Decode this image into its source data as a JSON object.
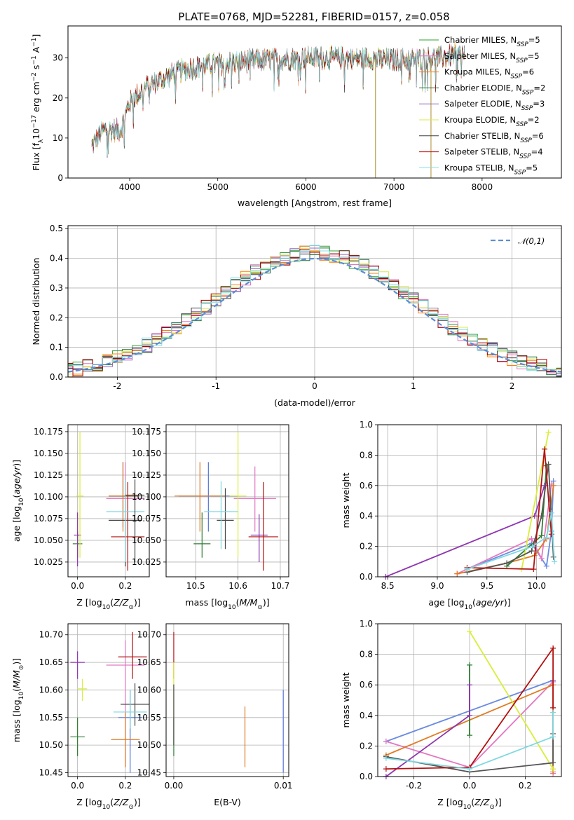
{
  "title": "PLATE=0768, MJD=52281, FIBERID=0157, z=0.058",
  "series_colors": [
    "#2ca02c",
    "#e377c2",
    "#ff7f0e",
    "#1f6b3a",
    "#9467bd",
    "#dbe84a",
    "#3d3d3d",
    "#b30000",
    "#7fe0e8"
  ],
  "chart_data": [
    {
      "id": "spectrum",
      "type": "line",
      "xlabel": "wavelength [Angstrom, rest frame]",
      "ylabel": "Flux [f_λ10^-17 erg cm^-2 s^-1 A^-1]",
      "xlim": [
        3300,
        8900
      ],
      "ylim": [
        0,
        38
      ],
      "xticks": [
        4000,
        5000,
        6000,
        7000,
        8000
      ],
      "yticks": [
        0,
        10,
        20,
        30
      ],
      "grid": false,
      "legend": "top-right",
      "series": [
        {
          "name": "Chabrier MILES, N_SSP=5",
          "color": "#2ca02c"
        },
        {
          "name": "Salpeter MILES, N_SSP=5",
          "color": "#e377c2"
        },
        {
          "name": "Kroupa MILES, N_SSP=6",
          "color": "#ff7f0e"
        },
        {
          "name": "Chabrier ELODIE, N_SSP=2",
          "color": "#1f6b3a"
        },
        {
          "name": "Salpeter ELODIE, N_SSP=3",
          "color": "#9467bd"
        },
        {
          "name": "Kroupa ELODIE, N_SSP=2",
          "color": "#dbe84a"
        },
        {
          "name": "Chabrier STELIB, N_SSP=6",
          "color": "#3d3d3d"
        },
        {
          "name": "Salpeter STELIB, N_SSP=4",
          "color": "#b30000"
        },
        {
          "name": "Kroupa STELIB, N_SSP=5",
          "color": "#7fe0e8"
        }
      ],
      "continuum": {
        "x": [
          3570,
          3700,
          3900,
          4000,
          4200,
          4400,
          4600,
          4800,
          5000,
          5200,
          5500,
          6000,
          6500,
          7000,
          7500,
          7800
        ],
        "y": [
          8,
          12,
          12,
          19,
          23,
          25,
          27,
          28,
          28.5,
          29,
          29.5,
          30,
          30,
          29.5,
          30,
          31
        ]
      }
    },
    {
      "id": "residuals",
      "type": "line",
      "xlabel": "(data-model)/error",
      "ylabel": "Normed distribution",
      "xlim": [
        -2.5,
        2.5
      ],
      "ylim": [
        0,
        0.51
      ],
      "xticks": [
        -2,
        -1,
        0,
        1,
        2
      ],
      "yticks": [
        0.0,
        0.1,
        0.2,
        0.3,
        0.4,
        0.5
      ],
      "grid": true,
      "legend": "top-right",
      "reference_label": "𝒩(0,1)",
      "bin_width": 0.1
    },
    {
      "id": "age-vs-Z",
      "type": "scatter",
      "xlabel": "Z [log10(Z/Z⊙)]",
      "ylabel": "age  [log10(age/yr)]",
      "xlim": [
        -0.04,
        0.3
      ],
      "ylim": [
        10.008,
        10.183
      ],
      "xticks": [
        0.0,
        0.2
      ],
      "yticks": [
        10.025,
        10.05,
        10.075,
        10.1,
        10.125,
        10.15,
        10.175
      ],
      "grid": true,
      "points": [
        {
          "series": "Chabrier MILES",
          "x": 0.19,
          "y": 10.101,
          "xerr": 0.06,
          "yerr": [
            10.065,
            10.14
          ]
        },
        {
          "series": "Salpeter MILES",
          "x": 0.2,
          "y": 10.098,
          "xerr": 0.08,
          "yerr": [
            10.058,
            10.14
          ]
        },
        {
          "series": "Kroupa MILES",
          "x": 0.19,
          "y": 10.101,
          "xerr": 0.06,
          "yerr": [
            10.06,
            10.14
          ]
        },
        {
          "series": "Chabrier ELODIE",
          "x": 0.0,
          "y": 10.046,
          "xerr": 0.02,
          "yerr": [
            10.03,
            10.06
          ]
        },
        {
          "series": "Salpeter ELODIE",
          "x": 0.0,
          "y": 10.056,
          "xerr": 0.015,
          "yerr": [
            10.02,
            10.082
          ]
        },
        {
          "series": "Kroupa ELODIE",
          "x": 0.01,
          "y": 10.101,
          "xerr": 0.015,
          "yerr": [
            10.03,
            10.175
          ]
        },
        {
          "series": "Chabrier STELIB",
          "x": 0.2,
          "y": 10.073,
          "xerr": 0.07,
          "yerr": [
            10.02,
            10.12
          ]
        },
        {
          "series": "Salpeter STELIB",
          "x": 0.21,
          "y": 10.054,
          "xerr": 0.07,
          "yerr": [
            10.015,
            10.117
          ]
        },
        {
          "series": "Kroupa STELIB",
          "x": 0.2,
          "y": 10.083,
          "xerr": 0.08,
          "yerr": [
            10.025,
            10.12
          ]
        },
        {
          "series": "Chabrier STELIB",
          "x": 0.24,
          "y": 10.102,
          "xerr": 0.04,
          "yerr": [
            10.025,
            10.12
          ]
        }
      ]
    },
    {
      "id": "age-vs-mass",
      "type": "scatter",
      "xlabel": "mass [log10(M/M⊙)]",
      "ylabel": "",
      "xlim": [
        10.43,
        10.72
      ],
      "ylim": [
        10.008,
        10.183
      ],
      "xticks": [
        10.5,
        10.6,
        10.7
      ],
      "yticks": [
        10.025,
        10.05,
        10.075,
        10.1,
        10.125,
        10.15,
        10.175
      ],
      "grid": true,
      "points": [
        {
          "series": "Chabrier MILES",
          "x": 10.53,
          "y": 10.101,
          "xerr": 0.07,
          "yerr": [
            10.06,
            10.14
          ]
        },
        {
          "series": "Salpeter MILES",
          "x": 10.64,
          "y": 10.098,
          "xerr": 0.05,
          "yerr": [
            10.06,
            10.135
          ]
        },
        {
          "series": "Kroupa MILES",
          "x": 10.51,
          "y": 10.101,
          "xerr": 0.06,
          "yerr": [
            10.06,
            10.14
          ]
        },
        {
          "series": "Chabrier ELODIE",
          "x": 10.515,
          "y": 10.046,
          "xerr": 0.02,
          "yerr": [
            10.03,
            10.082
          ]
        },
        {
          "series": "Salpeter ELODIE",
          "x": 10.65,
          "y": 10.056,
          "xerr": 0.02,
          "yerr": [
            10.025,
            10.08
          ]
        },
        {
          "series": "Kroupa ELODIE",
          "x": 10.6,
          "y": 10.101,
          "xerr": 0.02,
          "yerr": [
            10.03,
            10.175
          ]
        },
        {
          "series": "Chabrier STELIB",
          "x": 10.57,
          "y": 10.073,
          "xerr": 0.02,
          "yerr": [
            10.04,
            10.11
          ]
        },
        {
          "series": "Salpeter STELIB",
          "x": 10.66,
          "y": 10.054,
          "xerr": 0.035,
          "yerr": [
            10.015,
            10.117
          ]
        },
        {
          "series": "Kroupa STELIB",
          "x": 10.56,
          "y": 10.083,
          "xerr": 0.04,
          "yerr": [
            10.04,
            10.118
          ]
        }
      ]
    },
    {
      "id": "mass-weight-vs-age",
      "type": "line",
      "xlabel": "age  [log10(age/yr)]",
      "ylabel": "mass weight",
      "xlim": [
        8.4,
        10.25
      ],
      "ylim": [
        0,
        1
      ],
      "xticks": [
        8.5,
        9.0,
        9.5,
        10.0
      ],
      "yticks": [
        0.0,
        0.2,
        0.4,
        0.6,
        0.8,
        1.0
      ],
      "grid": true,
      "series": [
        {
          "name": "Chabrier MILES",
          "color": "#6a8be0",
          "x": [
            9.3,
            9.95,
            10.1,
            10.15,
            10.17
          ],
          "y": [
            0.05,
            0.22,
            0.07,
            0.3,
            0.63
          ]
        },
        {
          "name": "Salpeter MILES",
          "color": "#e377c2",
          "x": [
            9.2,
            9.95,
            10.05,
            10.15
          ],
          "y": [
            0.02,
            0.25,
            0.12,
            0.61
          ]
        },
        {
          "name": "Kroupa MILES",
          "color": "#e07b22",
          "x": [
            9.2,
            9.7,
            9.98,
            10.1,
            10.17
          ],
          "y": [
            0.02,
            0.09,
            0.14,
            0.25,
            0.6
          ]
        },
        {
          "name": "Chabrier ELODIE",
          "color": "#2e7d32",
          "x": [
            9.7,
            10.05,
            10.1
          ],
          "y": [
            0.07,
            0.27,
            0.73
          ]
        },
        {
          "name": "Salpeter ELODIE",
          "color": "#8e35b0",
          "x": [
            8.48,
            9.98,
            10.08
          ],
          "y": [
            0.0,
            0.4,
            0.6
          ]
        },
        {
          "name": "Kroupa ELODIE",
          "color": "#d8ee3a",
          "x": [
            9.85,
            10.12
          ],
          "y": [
            0.05,
            0.95
          ]
        },
        {
          "name": "Chabrier STELIB",
          "color": "#555555",
          "x": [
            9.3,
            9.7,
            9.95,
            10.05,
            10.12,
            10.17
          ],
          "y": [
            0.03,
            0.09,
            0.17,
            0.4,
            0.74,
            0.13
          ]
        },
        {
          "name": "Salpeter STELIB",
          "color": "#b31212",
          "x": [
            9.3,
            9.97,
            10.08,
            10.15
          ],
          "y": [
            0.06,
            0.05,
            0.84,
            0.28
          ]
        },
        {
          "name": "Kroupa STELIB",
          "color": "#7fd8e0",
          "x": [
            9.3,
            9.96,
            10.1,
            10.15,
            10.18
          ],
          "y": [
            0.05,
            0.2,
            0.26,
            0.42,
            0.1
          ]
        }
      ]
    },
    {
      "id": "mass-vs-Z",
      "type": "scatter",
      "xlabel": "Z [log10(Z/Z⊙)]",
      "ylabel": "mass [log10(M/M⊙)]",
      "xlim": [
        -0.04,
        0.3
      ],
      "ylim": [
        10.443,
        10.72
      ],
      "xticks": [
        0.0,
        0.2
      ],
      "yticks": [
        10.45,
        10.5,
        10.55,
        10.6,
        10.65,
        10.7
      ],
      "grid": true,
      "points": [
        {
          "series": "Chabrier MILES",
          "x": 0.22,
          "y": 10.55,
          "xerr": 0.05,
          "yerr": [
            10.45,
            10.6
          ]
        },
        {
          "series": "Salpeter MILES",
          "x": 0.2,
          "y": 10.645,
          "xerr": 0.08,
          "yerr": [
            10.46,
            10.69
          ]
        },
        {
          "series": "Kroupa MILES",
          "x": 0.2,
          "y": 10.51,
          "xerr": 0.06,
          "yerr": [
            10.46,
            10.56
          ]
        },
        {
          "series": "Chabrier ELODIE",
          "x": 0.0,
          "y": 10.515,
          "xerr": 0.03,
          "yerr": [
            10.48,
            10.55
          ]
        },
        {
          "series": "Salpeter ELODIE",
          "x": 0.0,
          "y": 10.65,
          "xerr": 0.03,
          "yerr": [
            10.62,
            10.67
          ]
        },
        {
          "series": "Kroupa ELODIE",
          "x": 0.02,
          "y": 10.602,
          "xerr": 0.02,
          "yerr": [
            10.58,
            10.62
          ]
        },
        {
          "series": "Chabrier STELIB",
          "x": 0.24,
          "y": 10.574,
          "xerr": 0.06,
          "yerr": [
            10.535,
            10.612
          ]
        },
        {
          "series": "Salpeter STELIB",
          "x": 0.23,
          "y": 10.66,
          "xerr": 0.06,
          "yerr": [
            10.62,
            10.705
          ]
        },
        {
          "series": "Kroupa STELIB",
          "x": 0.22,
          "y": 10.56,
          "xerr": 0.07,
          "yerr": [
            10.53,
            10.6
          ]
        }
      ]
    },
    {
      "id": "mass-vs-EBV",
      "type": "scatter",
      "xlabel": "E(B-V)",
      "ylabel": "",
      "xlim": [
        -0.0007,
        0.0105
      ],
      "ylim": [
        10.443,
        10.72
      ],
      "xticks": [
        0.0,
        0.01
      ],
      "yticks": [
        10.45,
        10.5,
        10.55,
        10.6,
        10.65,
        10.7
      ],
      "grid": true,
      "points": [
        {
          "series": "Chabrier MILES",
          "x": 0.01,
          "y": 10.53,
          "yerr": [
            10.45,
            10.6
          ]
        },
        {
          "series": "Kroupa MILES",
          "x": 0.0065,
          "y": 10.51,
          "yerr": [
            10.46,
            10.57
          ]
        },
        {
          "series": "Chabrier ELODIE",
          "x": 0.0,
          "y": 10.52,
          "yerr": [
            10.48,
            10.55
          ]
        },
        {
          "series": "Salpeter STELIB",
          "x": 0.0,
          "y": 10.66,
          "yerr": [
            10.62,
            10.705
          ]
        },
        {
          "series": "Kroupa ELODIE",
          "x": 0.0,
          "y": 10.6,
          "yerr": [
            10.55,
            10.65
          ]
        },
        {
          "series": "Chabrier STELIB",
          "x": 0.0,
          "y": 10.575,
          "yerr": [
            10.5,
            10.61
          ]
        }
      ]
    },
    {
      "id": "mass-weight-vs-Z",
      "type": "line",
      "xlabel": "Z [log10(Z/Z⊙)]",
      "ylabel": "mass weight",
      "xlim": [
        -0.33,
        0.33
      ],
      "ylim": [
        0,
        1
      ],
      "xticks": [
        -0.2,
        0.0,
        0.2
      ],
      "yticks": [
        0.0,
        0.2,
        0.4,
        0.6,
        0.8,
        1.0
      ],
      "grid": true,
      "series": [
        {
          "name": "Chabrier MILES",
          "color": "#6a8be0",
          "x": [
            -0.3,
            0.3,
            0.3
          ],
          "y": [
            0.23,
            0.63,
            0.05
          ]
        },
        {
          "name": "Salpeter MILES",
          "color": "#e377c2",
          "x": [
            -0.3,
            0.0,
            0.3,
            0.3
          ],
          "y": [
            0.23,
            0.06,
            0.62,
            0.02
          ]
        },
        {
          "name": "Kroupa MILES",
          "color": "#e07b22",
          "x": [
            -0.3,
            0.3,
            0.3
          ],
          "y": [
            0.14,
            0.6,
            0.03
          ]
        },
        {
          "name": "Chabrier ELODIE",
          "color": "#2e7d32",
          "x": [
            0.0,
            0.0
          ],
          "y": [
            0.27,
            0.73
          ]
        },
        {
          "name": "Salpeter ELODIE",
          "color": "#8e35b0",
          "x": [
            -0.3,
            0.0,
            0.0
          ],
          "y": [
            0.0,
            0.4,
            0.6
          ]
        },
        {
          "name": "Kroupa ELODIE",
          "color": "#d8ee3a",
          "x": [
            0.0,
            0.3
          ],
          "y": [
            0.95,
            0.05
          ]
        },
        {
          "name": "Chabrier STELIB",
          "color": "#555555",
          "x": [
            -0.3,
            0.0,
            0.3,
            0.3
          ],
          "y": [
            0.13,
            0.03,
            0.09,
            0.28
          ]
        },
        {
          "name": "Salpeter STELIB",
          "color": "#b31212",
          "x": [
            -0.3,
            0.0,
            0.3,
            0.3
          ],
          "y": [
            0.05,
            0.06,
            0.84,
            0.45
          ]
        },
        {
          "name": "Kroupa STELIB",
          "color": "#7fd8e0",
          "x": [
            -0.3,
            0.0,
            0.3,
            0.3
          ],
          "y": [
            0.12,
            0.05,
            0.26,
            0.42
          ]
        }
      ]
    }
  ]
}
